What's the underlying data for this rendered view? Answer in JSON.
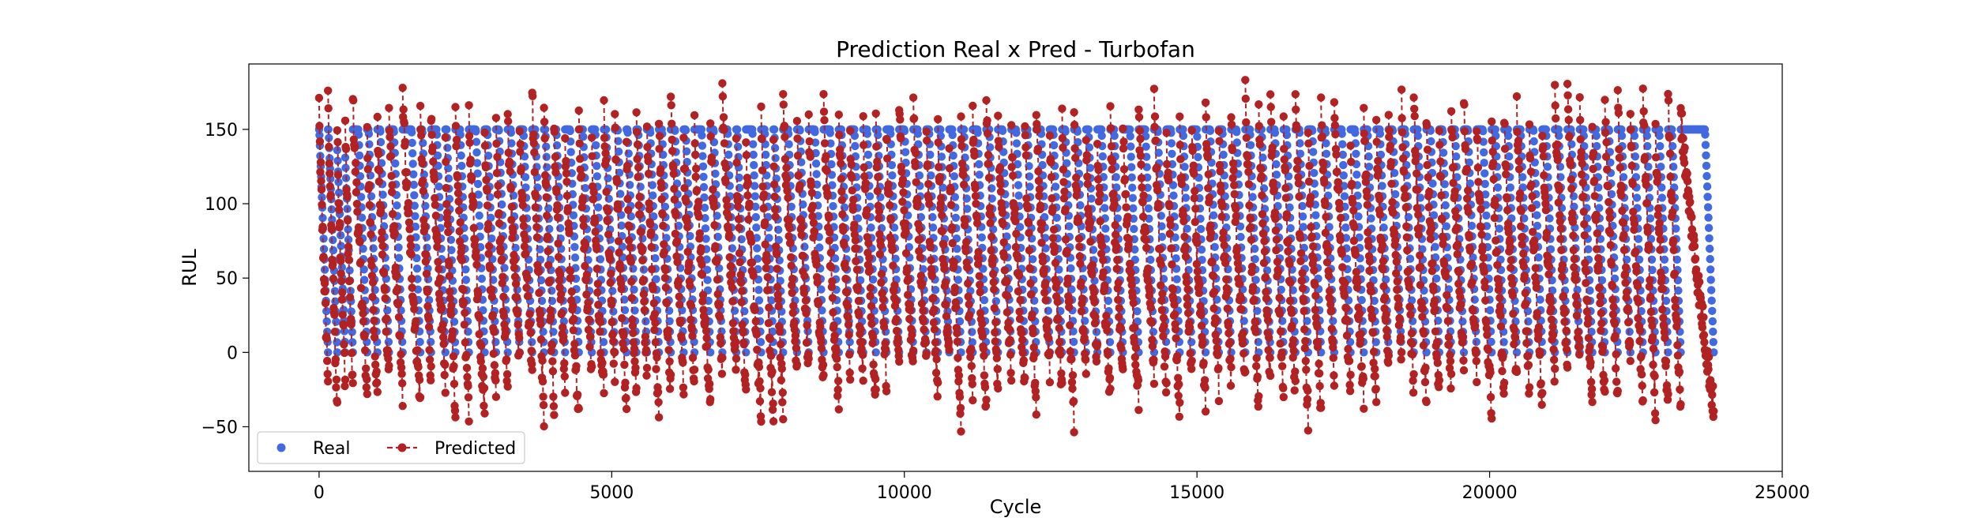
{
  "chart_data": {
    "type": "scatter",
    "title": "Prediction Real x Pred - Turbofan",
    "xlabel": "Cycle",
    "ylabel": "RUL",
    "xlim": [
      -1200,
      25000
    ],
    "ylim": [
      -80,
      194
    ],
    "x_ticks": [
      0,
      5000,
      10000,
      15000,
      20000,
      25000
    ],
    "y_ticks": [
      -50,
      0,
      50,
      100,
      150
    ],
    "grid": false,
    "legend_position": "lower-left",
    "colors": {
      "real": "#4169e1",
      "predicted": "#b22222"
    },
    "series": [
      {
        "name": "Real",
        "style": "points",
        "description_values": "Each engine unit: RUL capped at 150 then decreasing linearly to 0",
        "segments": [
          [
            0,
            153
          ],
          [
            153,
            311
          ],
          [
            311,
            447
          ],
          [
            447,
            578
          ],
          [
            578,
            822
          ],
          [
            822,
            997
          ],
          [
            997,
            1195
          ],
          [
            1195,
            1428
          ],
          [
            1428,
            1731
          ],
          [
            1731,
            1914
          ],
          [
            1914,
            2158
          ],
          [
            2158,
            2330
          ],
          [
            2330,
            2560
          ],
          [
            2560,
            2829
          ],
          [
            2829,
            3024
          ],
          [
            3024,
            3223
          ],
          [
            3223,
            3427
          ],
          [
            3427,
            3642
          ],
          [
            3642,
            3843
          ],
          [
            3843,
            4016
          ],
          [
            4016,
            4204
          ],
          [
            4204,
            4438
          ],
          [
            4438,
            4659
          ],
          [
            4659,
            4868
          ],
          [
            4868,
            5054
          ],
          [
            5054,
            5253
          ],
          [
            5253,
            5422
          ],
          [
            5422,
            5603
          ],
          [
            5603,
            5807
          ],
          [
            5807,
            6010
          ],
          [
            6010,
            6230
          ],
          [
            6230,
            6415
          ],
          [
            6415,
            6686
          ],
          [
            6686,
            6891
          ],
          [
            6891,
            7129
          ],
          [
            7129,
            7295
          ],
          [
            7295,
            7554
          ],
          [
            7554,
            7764
          ],
          [
            7764,
            7929
          ],
          [
            7929,
            8167
          ],
          [
            8167,
            8366
          ],
          [
            8366,
            8620
          ],
          [
            8620,
            8880
          ],
          [
            8880,
            9075
          ],
          [
            9075,
            9297
          ],
          [
            9297,
            9514
          ],
          [
            9514,
            9695
          ],
          [
            9695,
            9912
          ],
          [
            9912,
            10153
          ],
          [
            10153,
            10377
          ],
          [
            10377,
            10573
          ],
          [
            10573,
            10767
          ],
          [
            10767,
            10969
          ],
          [
            10969,
            11169
          ],
          [
            11169,
            11401
          ],
          [
            11401,
            11601
          ],
          [
            11601,
            11828
          ],
          [
            11828,
            12060
          ],
          [
            12060,
            12255
          ],
          [
            12255,
            12486
          ],
          [
            12486,
            12695
          ],
          [
            12695,
            12900
          ],
          [
            12900,
            13105
          ],
          [
            13105,
            13298
          ],
          [
            13298,
            13520
          ],
          [
            13520,
            13735
          ],
          [
            13735,
            14005
          ],
          [
            14005,
            14268
          ],
          [
            14268,
            14480
          ],
          [
            14480,
            14705
          ],
          [
            14705,
            14913
          ],
          [
            14913,
            15148
          ],
          [
            15148,
            15375
          ],
          [
            15375,
            15585
          ],
          [
            15585,
            15825
          ],
          [
            15825,
            16055
          ],
          [
            16055,
            16255
          ],
          [
            16255,
            16480
          ],
          [
            16480,
            16682
          ],
          [
            16682,
            16900
          ],
          [
            16900,
            17120
          ],
          [
            17120,
            17345
          ],
          [
            17345,
            17625
          ],
          [
            17625,
            17850
          ],
          [
            17850,
            18065
          ],
          [
            18065,
            18275
          ],
          [
            18275,
            18495
          ],
          [
            18495,
            18705
          ],
          [
            18705,
            18920
          ],
          [
            18920,
            19140
          ],
          [
            19140,
            19345
          ],
          [
            19345,
            19560
          ],
          [
            19560,
            19780
          ],
          [
            19780,
            20035
          ],
          [
            20035,
            20250
          ],
          [
            20250,
            20465
          ],
          [
            20465,
            20680
          ],
          [
            20680,
            20900
          ],
          [
            20900,
            21115
          ],
          [
            21115,
            21330
          ],
          [
            21330,
            21540
          ],
          [
            21540,
            21755
          ],
          [
            21755,
            21970
          ],
          [
            21970,
            22190
          ],
          [
            22190,
            22405
          ],
          [
            22405,
            22620
          ],
          [
            22620,
            22835
          ],
          [
            22835,
            23050
          ],
          [
            23050,
            23265
          ],
          [
            23265,
            23830
          ]
        ]
      },
      {
        "name": "Predicted",
        "style": "dashed-line-with-markers",
        "description_values": "Predicted RUL per cycle, ranging roughly from -75 to 184",
        "y_min": -75,
        "y_max": 184
      }
    ]
  }
}
